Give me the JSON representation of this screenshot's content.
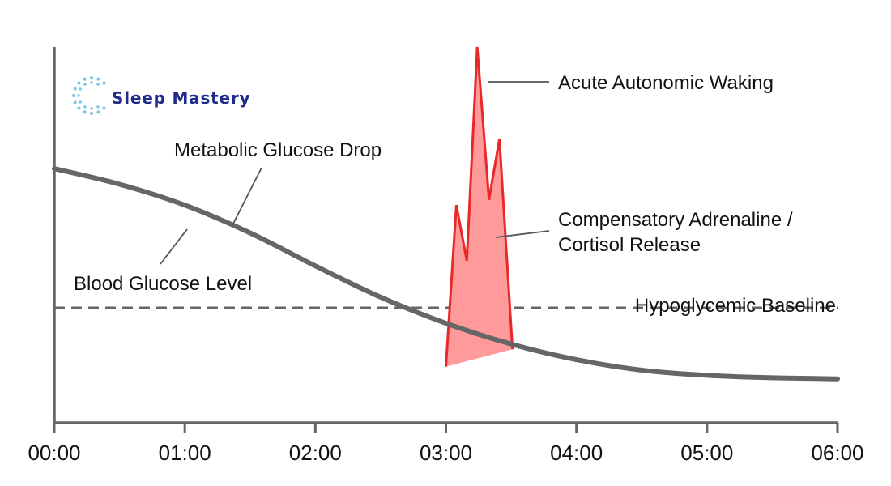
{
  "brand": {
    "name": "Sleep Mastery",
    "logo_icon": "dotted-ring-icon",
    "logo_color": "#7cc4e6",
    "text_color": "#1f2a8a"
  },
  "chart_data": {
    "type": "line",
    "x_ticks": [
      "00:00",
      "01:00",
      "02:00",
      "03:00",
      "04:00",
      "05:00",
      "06:00"
    ],
    "xlim_hours": [
      0,
      6
    ],
    "ylim": [
      0,
      100
    ],
    "grid": false,
    "y_ticks_shown": false,
    "series": [
      {
        "name": "Blood Glucose Level",
        "color": "#666666",
        "x_hours": [
          0,
          0.5,
          1,
          1.5,
          2,
          2.5,
          3,
          3.5,
          4,
          4.5,
          5,
          5.5,
          6
        ],
        "y": [
          65,
          60.5,
          54.5,
          46.5,
          37,
          28,
          20.5,
          14.5,
          10,
          7,
          5.5,
          4.8,
          4.5
        ]
      },
      {
        "name": "Compensatory Adrenaline / Cortisol Release",
        "color": "#e8282b",
        "fill": "#ff9a9a",
        "x_hours": [
          3.0,
          3.08,
          3.16,
          3.24,
          3.33,
          3.41,
          3.51
        ],
        "y": [
          8,
          54.5,
          38.5,
          100,
          56,
          73.5,
          13
        ]
      }
    ],
    "baseline": {
      "label": "Hypoglycemic Baseline",
      "y": 25,
      "style": "dashed",
      "color": "#666666"
    },
    "annotations": [
      {
        "text": "Metabolic Glucose Drop",
        "points_to": "glucose-curve"
      },
      {
        "text": "Blood Glucose Level",
        "points_to": "glucose-curve"
      },
      {
        "text": "Acute Autonomic Waking",
        "points_to": "adrenaline-peak"
      },
      {
        "text": "Compensatory Adrenaline /",
        "text_line2": "Cortisol Release",
        "points_to": "adrenaline-area"
      }
    ]
  }
}
